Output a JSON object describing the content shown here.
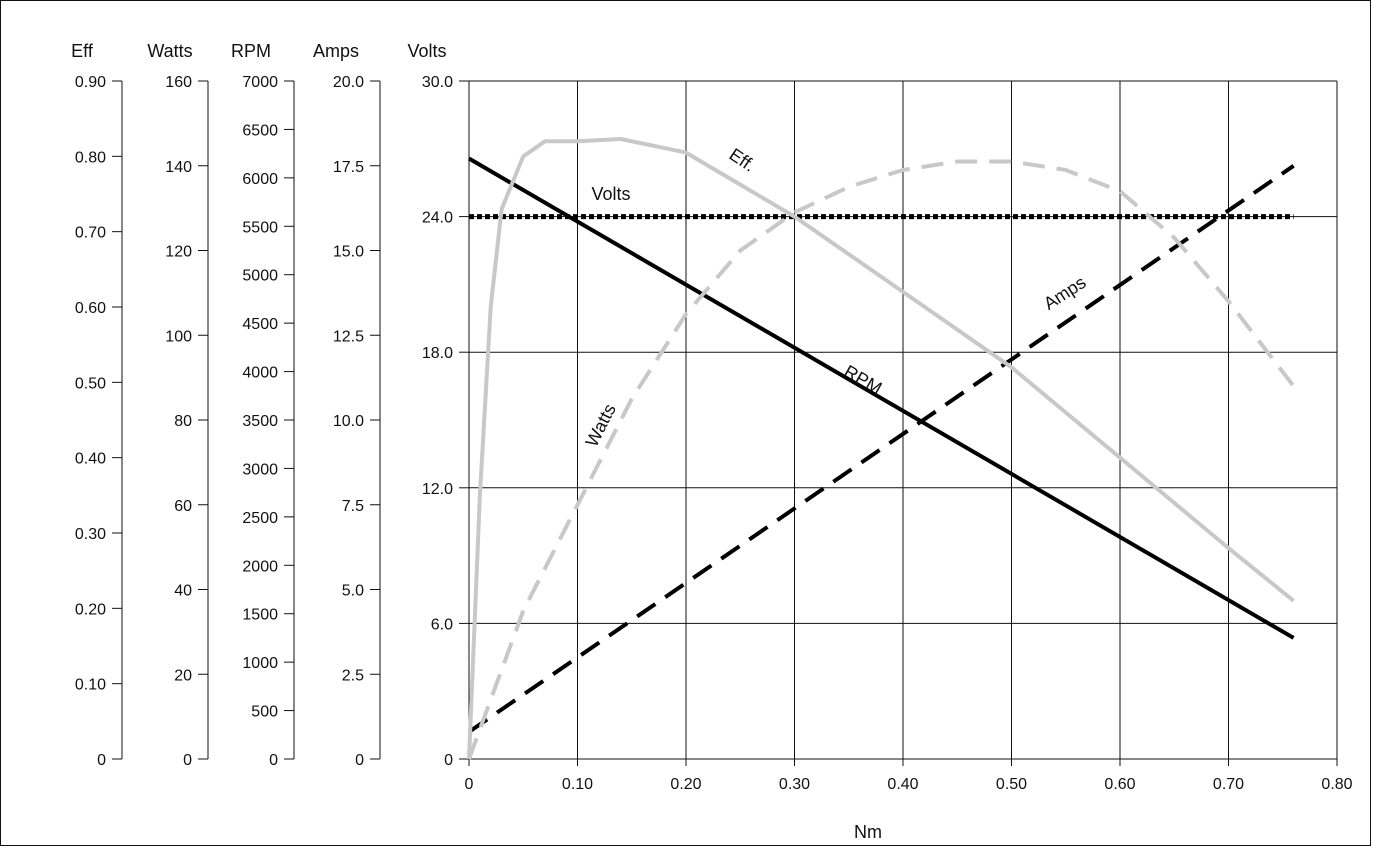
{
  "chart_data": {
    "type": "line",
    "x_axis": {
      "title": "Nm",
      "range": [
        0,
        0.8
      ],
      "ticks": [
        "0",
        "0.10",
        "0.20",
        "0.30",
        "0.40",
        "0.50",
        "0.60",
        "0.70",
        "0.80"
      ]
    },
    "left_axes": [
      {
        "key": "eff",
        "title": "Eff",
        "range": [
          0,
          0.9
        ],
        "ticks": [
          "0",
          "0.10",
          "0.20",
          "0.30",
          "0.40",
          "0.50",
          "0.60",
          "0.70",
          "0.80",
          "0.90"
        ]
      },
      {
        "key": "watts",
        "title": "Watts",
        "range": [
          0,
          160
        ],
        "ticks": [
          "0",
          "20",
          "40",
          "60",
          "80",
          "100",
          "120",
          "140",
          "160"
        ]
      },
      {
        "key": "rpm",
        "title": "RPM",
        "range": [
          0,
          7000
        ],
        "ticks": [
          "0",
          "500",
          "1000",
          "1500",
          "2000",
          "2500",
          "3000",
          "3500",
          "4000",
          "4500",
          "5000",
          "5500",
          "6000",
          "6500",
          "7000"
        ]
      },
      {
        "key": "amps",
        "title": "Amps",
        "range": [
          0,
          20
        ],
        "ticks": [
          "0",
          "2.5",
          "5.0",
          "7.5",
          "10.0",
          "12.5",
          "15.0",
          "17.5",
          "20.0"
        ]
      },
      {
        "key": "volts",
        "title": "Volts",
        "range": [
          0,
          30
        ],
        "ticks": [
          "0",
          "6.0",
          "12.0",
          "18.0",
          "24.0",
          "30.0"
        ]
      }
    ],
    "grid": true,
    "series": [
      {
        "name": "Volts",
        "axis": "volts",
        "style": "dotted",
        "color": "#000000",
        "x": [
          0.0,
          0.76
        ],
        "y": [
          24.0,
          24.0
        ]
      },
      {
        "name": "RPM",
        "axis": "rpm",
        "style": "solid",
        "color": "#000000",
        "x": [
          0.0,
          0.76
        ],
        "y": [
          6200,
          1250
        ]
      },
      {
        "name": "Amps",
        "axis": "amps",
        "style": "dashed",
        "color": "#000000",
        "x": [
          0.0,
          0.76
        ],
        "y": [
          0.8,
          17.5
        ]
      },
      {
        "name": "Eff.",
        "axis": "eff",
        "style": "solid",
        "color": "#c8c8c8",
        "x": [
          0.0,
          0.01,
          0.02,
          0.03,
          0.05,
          0.07,
          0.1,
          0.14,
          0.2,
          0.3,
          0.4,
          0.5,
          0.6,
          0.7,
          0.76
        ],
        "y": [
          0.0,
          0.35,
          0.6,
          0.73,
          0.8,
          0.82,
          0.82,
          0.823,
          0.805,
          0.72,
          0.62,
          0.52,
          0.4,
          0.28,
          0.21
        ]
      },
      {
        "name": "Watts",
        "axis": "watts",
        "style": "dashed",
        "color": "#c8c8c8",
        "x": [
          0.0,
          0.05,
          0.1,
          0.15,
          0.2,
          0.25,
          0.3,
          0.35,
          0.4,
          0.45,
          0.5,
          0.55,
          0.6,
          0.65,
          0.7,
          0.76
        ],
        "y": [
          0.0,
          35,
          60,
          85,
          105,
          120,
          129,
          135,
          139,
          141,
          141,
          139,
          134,
          123,
          108,
          88
        ]
      }
    ],
    "labels": [
      {
        "text": "Volts",
        "series": "Volts"
      },
      {
        "text": "Eff.",
        "series": "Eff."
      },
      {
        "text": "Amps",
        "series": "Amps"
      },
      {
        "text": "RPM",
        "series": "RPM"
      },
      {
        "text": "Watts",
        "series": "Watts"
      }
    ]
  }
}
